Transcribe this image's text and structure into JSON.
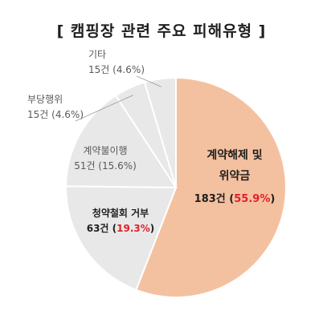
{
  "chart_data": {
    "type": "pie",
    "title": "[ 캠핑장 관련 주요 피해유형 ]",
    "slices": [
      {
        "label": "계약해제 및 위약금",
        "count_text": "183건",
        "pct_text": "55.9%",
        "value": 55.9,
        "color": "#f4c1a0"
      },
      {
        "label": "청약철회 거부",
        "count_text": "63건",
        "pct_text": "19.3%",
        "value": 19.3,
        "color": "#e8e8e8"
      },
      {
        "label": "계약불이행",
        "count_text": "51건",
        "pct_text": "15.6%",
        "value": 15.6,
        "color": "#e8e8e8"
      },
      {
        "label": "부당행위",
        "count_text": "15건",
        "pct_text": "4.6%",
        "value": 4.6,
        "color": "#e8e8e8"
      },
      {
        "label": "기타",
        "count_text": "15건",
        "pct_text": "4.6%",
        "value": 4.6,
        "color": "#e8e8e8"
      }
    ],
    "highlight_color": "#e0202a",
    "legend": "none"
  }
}
